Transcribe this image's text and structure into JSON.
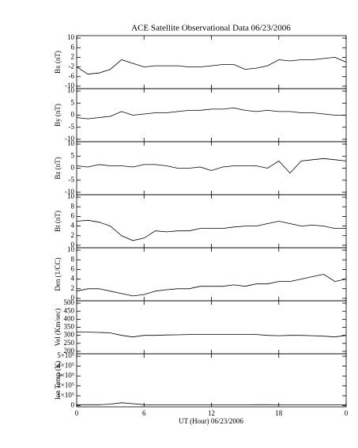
{
  "chart_data": {
    "type": "line",
    "title": "ACE Satellite Observational Data   06/23/2006",
    "xlabel": "UT (Hour)   06/23/2006",
    "color": "#000000",
    "xlim": [
      0,
      24
    ],
    "xticks": [
      0,
      6,
      12,
      18,
      {
        "value": 24,
        "label": "0"
      }
    ],
    "x": [
      0,
      1,
      2,
      3,
      4,
      5,
      6,
      7,
      8,
      9,
      10,
      11,
      12,
      13,
      14,
      15,
      16,
      17,
      18,
      19,
      20,
      21,
      22,
      23,
      24
    ],
    "panels": [
      {
        "ylabel": "Bx (nT)",
        "ylim": [
          -11,
          11
        ],
        "yticks": [
          10,
          6,
          2,
          -2,
          -6,
          -10
        ],
        "values": [
          -2,
          -5,
          -4.5,
          -3,
          1,
          -0.5,
          -2,
          -1.5,
          -1.5,
          -1.5,
          -2,
          -2,
          -1.5,
          -1,
          -1,
          -3,
          -2.5,
          -1.5,
          1,
          0.5,
          1,
          1,
          1.5,
          2,
          0
        ]
      },
      {
        "ylabel": "By (nT)",
        "ylim": [
          -11,
          11
        ],
        "yticks": [
          10,
          5,
          0,
          -5,
          -10
        ],
        "values": [
          -1,
          -1.5,
          -1,
          -0.5,
          1.5,
          0,
          0.5,
          1,
          1,
          1.5,
          2,
          2,
          2.5,
          2.5,
          3,
          2,
          1.5,
          2,
          1.5,
          1.5,
          1,
          1,
          0.5,
          0,
          0
        ]
      },
      {
        "ylabel": "Bz (nT)",
        "ylim": [
          -11,
          11
        ],
        "yticks": [
          10,
          5,
          0,
          -5,
          -10
        ],
        "values": [
          1,
          0.5,
          1.5,
          1,
          1,
          0.5,
          1.5,
          1.5,
          1,
          0,
          0,
          0.5,
          -1,
          0.5,
          1,
          1,
          1,
          0,
          3,
          -2,
          3,
          3.5,
          4,
          3.5,
          3
        ]
      },
      {
        "ylabel": "Bt (nT)",
        "ylim": [
          -0.5,
          10.5
        ],
        "yticks": [
          10,
          8,
          6,
          4,
          2,
          0
        ],
        "values": [
          5,
          5.2,
          4.8,
          4,
          2,
          1,
          1.5,
          3,
          2.8,
          3,
          3,
          3.5,
          3.5,
          3.5,
          3.8,
          4,
          4,
          4.5,
          5,
          4.5,
          4,
          4.2,
          4,
          3.5,
          3.5
        ]
      },
      {
        "ylabel": "Den (1/CC)",
        "ylim": [
          -0.5,
          10.5
        ],
        "yticks": [
          10,
          8,
          6,
          4,
          2,
          0
        ],
        "values": [
          1.5,
          2,
          2,
          1.5,
          1,
          0.5,
          0.8,
          1.5,
          1.8,
          2,
          2,
          2.5,
          2.5,
          2.5,
          2.8,
          2.5,
          3,
          3,
          3.5,
          3.5,
          4,
          4.5,
          5,
          3.5,
          4
        ]
      },
      {
        "ylabel": "Vel (Km/sec)",
        "ylim": [
          185,
          515
        ],
        "yticks": [
          500,
          450,
          400,
          350,
          300,
          250,
          200
        ],
        "values": [
          320,
          320,
          318,
          315,
          300,
          290,
          300,
          300,
          302,
          303,
          305,
          305,
          305,
          305,
          305,
          305,
          305,
          300,
          298,
          300,
          300,
          298,
          295,
          290,
          300
        ]
      },
      {
        "ylabel": "Ion Temp (K)",
        "ylim": [
          -12000,
          525000
        ],
        "yticks": [
          {
            "value": 500000,
            "label": "5×10⁵"
          },
          {
            "value": 400000,
            "label": "4×10⁵"
          },
          {
            "value": 300000,
            "label": "3×10⁵"
          },
          {
            "value": 200000,
            "label": "2×10⁵"
          },
          {
            "value": 100000,
            "label": "1×10⁵"
          },
          0
        ],
        "values": [
          10000,
          10000,
          10000,
          15000,
          30000,
          20000,
          10000,
          8000,
          8000,
          8000,
          8000,
          8000,
          8000,
          8000,
          8000,
          8000,
          10000,
          10000,
          8000,
          8000,
          8000,
          8000,
          8000,
          8000,
          8000
        ]
      }
    ]
  }
}
